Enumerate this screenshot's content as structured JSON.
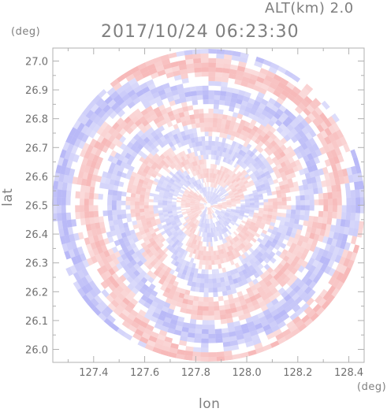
{
  "chart_data": {
    "type": "heatmap",
    "altitude_label": "ALT(km) 2.0",
    "timestamp": "2017/10/24 06:23:30",
    "xlabel": "lon",
    "ylabel": "lat",
    "x_unit": "(deg)",
    "y_unit": "(deg)",
    "xlim": [
      127.24,
      128.46
    ],
    "ylim": [
      25.955,
      27.045
    ],
    "x_ticks": [
      "127.4",
      "127.6",
      "127.8",
      "128.0",
      "128.2",
      "128.4"
    ],
    "x_tick_values": [
      127.4,
      127.6,
      127.8,
      128.0,
      128.2,
      128.4
    ],
    "y_ticks": [
      "26.0",
      "26.1",
      "26.2",
      "26.3",
      "26.4",
      "26.5",
      "26.6",
      "26.7",
      "26.8",
      "26.9",
      "27.0"
    ],
    "y_tick_values": [
      26.0,
      26.1,
      26.2,
      26.3,
      26.4,
      26.5,
      26.6,
      26.7,
      26.8,
      26.9,
      27.0
    ],
    "radar_center": {
      "lon": 127.85,
      "lat": 26.5
    },
    "colors": {
      "positive": "#f08080",
      "negative": "#8080f0",
      "frame": "#b0b0b0",
      "text": "#7f7f7f"
    },
    "pattern": "concentric alternating red/blue range-azimuth bins around radar site"
  }
}
